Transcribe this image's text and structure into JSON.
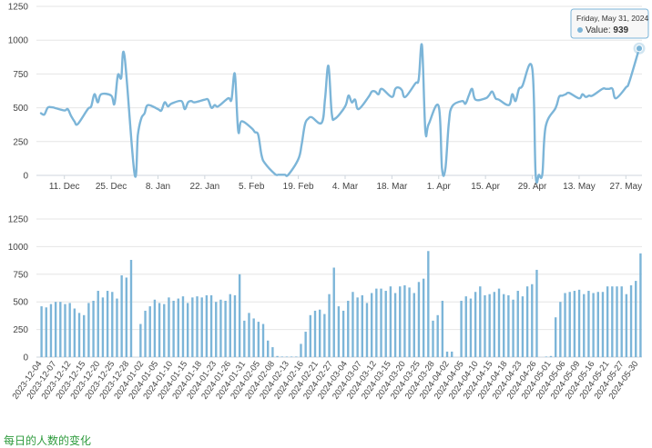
{
  "chart_data": [
    {
      "type": "line",
      "ylim": [
        0,
        1250
      ],
      "y_ticks": [
        "0",
        "250",
        "500",
        "750",
        "1000",
        "1250"
      ],
      "x_ticks": [
        "11. Dec",
        "25. Dec",
        "8. Jan",
        "22. Jan",
        "5. Feb",
        "19. Feb",
        "4. Mar",
        "18. Mar",
        "1. Apr",
        "15. Apr",
        "29. Apr",
        "13. May",
        "27. May"
      ],
      "grid": true,
      "points": [
        [
          "2023-12-04",
          460
        ],
        [
          "2023-12-05",
          450
        ],
        [
          "2023-12-06",
          500
        ],
        [
          "2023-12-07",
          505
        ],
        [
          "2023-12-08",
          500
        ],
        [
          "2023-12-11",
          480
        ],
        [
          "2023-12-12",
          490
        ],
        [
          "2023-12-13",
          440
        ],
        [
          "2023-12-14",
          400
        ],
        [
          "2023-12-15",
          380
        ],
        [
          "2023-12-18",
          490
        ],
        [
          "2023-12-19",
          510
        ],
        [
          "2023-12-20",
          600
        ],
        [
          "2023-12-21",
          540
        ],
        [
          "2023-12-22",
          600
        ],
        [
          "2023-12-25",
          590
        ],
        [
          "2023-12-26",
          530
        ],
        [
          "2023-12-27",
          740
        ],
        [
          "2023-12-28",
          720
        ],
        [
          "2023-12-29",
          880
        ],
        [
          "2024-01-01",
          10
        ],
        [
          "2024-01-02",
          300
        ],
        [
          "2024-01-03",
          420
        ],
        [
          "2024-01-04",
          460
        ],
        [
          "2024-01-05",
          520
        ],
        [
          "2024-01-08",
          490
        ],
        [
          "2024-01-09",
          480
        ],
        [
          "2024-01-10",
          540
        ],
        [
          "2024-01-11",
          510
        ],
        [
          "2024-01-12",
          530
        ],
        [
          "2024-01-15",
          550
        ],
        [
          "2024-01-16",
          490
        ],
        [
          "2024-01-17",
          540
        ],
        [
          "2024-01-18",
          550
        ],
        [
          "2024-01-19",
          540
        ],
        [
          "2024-01-22",
          560
        ],
        [
          "2024-01-23",
          560
        ],
        [
          "2024-01-24",
          500
        ],
        [
          "2024-01-25",
          520
        ],
        [
          "2024-01-26",
          510
        ],
        [
          "2024-01-29",
          570
        ],
        [
          "2024-01-30",
          560
        ],
        [
          "2024-01-31",
          750
        ],
        [
          "2024-02-01",
          330
        ],
        [
          "2024-02-02",
          400
        ],
        [
          "2024-02-05",
          350
        ],
        [
          "2024-02-06",
          320
        ],
        [
          "2024-02-07",
          300
        ],
        [
          "2024-02-08",
          150
        ],
        [
          "2024-02-09",
          90
        ],
        [
          "2024-02-12",
          10
        ],
        [
          "2024-02-13",
          5
        ],
        [
          "2024-02-14",
          5
        ],
        [
          "2024-02-15",
          5
        ],
        [
          "2024-02-16",
          5
        ],
        [
          "2024-02-19",
          120
        ],
        [
          "2024-02-20",
          230
        ],
        [
          "2024-02-21",
          380
        ],
        [
          "2024-02-22",
          420
        ],
        [
          "2024-02-23",
          430
        ],
        [
          "2024-02-26",
          390
        ],
        [
          "2024-02-27",
          570
        ],
        [
          "2024-02-28",
          810
        ],
        [
          "2024-02-29",
          460
        ],
        [
          "2024-03-01",
          420
        ],
        [
          "2024-03-04",
          510
        ],
        [
          "2024-03-05",
          590
        ],
        [
          "2024-03-06",
          540
        ],
        [
          "2024-03-07",
          560
        ],
        [
          "2024-03-08",
          490
        ],
        [
          "2024-03-11",
          580
        ],
        [
          "2024-03-12",
          620
        ],
        [
          "2024-03-13",
          620
        ],
        [
          "2024-03-14",
          600
        ],
        [
          "2024-03-15",
          640
        ],
        [
          "2024-03-18",
          580
        ],
        [
          "2024-03-19",
          640
        ],
        [
          "2024-03-20",
          650
        ],
        [
          "2024-03-21",
          630
        ],
        [
          "2024-03-22",
          580
        ],
        [
          "2024-03-25",
          680
        ],
        [
          "2024-03-26",
          710
        ],
        [
          "2024-03-27",
          960
        ],
        [
          "2024-03-28",
          330
        ],
        [
          "2024-03-29",
          380
        ],
        [
          "2024-04-01",
          510
        ],
        [
          "2024-04-02",
          50
        ],
        [
          "2024-04-03",
          50
        ],
        [
          "2024-04-04",
          380
        ],
        [
          "2024-04-05",
          510
        ],
        [
          "2024-04-08",
          550
        ],
        [
          "2024-04-09",
          530
        ],
        [
          "2024-04-10",
          590
        ],
        [
          "2024-04-11",
          640
        ],
        [
          "2024-04-12",
          560
        ],
        [
          "2024-04-15",
          570
        ],
        [
          "2024-04-16",
          590
        ],
        [
          "2024-04-17",
          620
        ],
        [
          "2024-04-18",
          570
        ],
        [
          "2024-04-19",
          560
        ],
        [
          "2024-04-22",
          520
        ],
        [
          "2024-04-23",
          600
        ],
        [
          "2024-04-24",
          550
        ],
        [
          "2024-04-25",
          640
        ],
        [
          "2024-04-26",
          660
        ],
        [
          "2024-04-29",
          790
        ],
        [
          "2024-04-30",
          10
        ],
        [
          "2024-05-01",
          5
        ],
        [
          "2024-05-02",
          10
        ],
        [
          "2024-05-03",
          360
        ],
        [
          "2024-05-06",
          500
        ],
        [
          "2024-05-07",
          580
        ],
        [
          "2024-05-08",
          590
        ],
        [
          "2024-05-09",
          600
        ],
        [
          "2024-05-10",
          610
        ],
        [
          "2024-05-13",
          570
        ],
        [
          "2024-05-14",
          600
        ],
        [
          "2024-05-15",
          580
        ],
        [
          "2024-05-16",
          590
        ],
        [
          "2024-05-17",
          590
        ],
        [
          "2024-05-20",
          640
        ],
        [
          "2024-05-21",
          640
        ],
        [
          "2024-05-22",
          640
        ],
        [
          "2024-05-23",
          640
        ],
        [
          "2024-05-24",
          570
        ],
        [
          "2024-05-27",
          650
        ],
        [
          "2024-05-28",
          690
        ],
        [
          "2024-05-31",
          939
        ]
      ]
    },
    {
      "type": "bar",
      "ylim": [
        0,
        1250
      ],
      "y_ticks": [
        "0",
        "250",
        "500",
        "750",
        "1000",
        "1250"
      ],
      "x_ticks": [
        "2023-12-04",
        "2023-12-07",
        "2023-12-12",
        "2023-12-15",
        "2023-12-20",
        "2023-12-25",
        "2023-12-28",
        "2024-01-02",
        "2024-01-05",
        "2024-01-10",
        "2024-01-15",
        "2024-01-18",
        "2024-01-23",
        "2024-01-26",
        "2024-01-31",
        "2024-02-05",
        "2024-02-08",
        "2024-02-13",
        "2024-02-16",
        "2024-02-21",
        "2024-02-27",
        "2024-03-04",
        "2024-03-07",
        "2024-03-12",
        "2024-03-15",
        "2024-03-20",
        "2024-03-25",
        "2024-03-28",
        "2024-04-02",
        "2024-04-05",
        "2024-04-10",
        "2024-04-15",
        "2024-04-18",
        "2024-04-23",
        "2024-04-26",
        "2024-05-01",
        "2024-05-06",
        "2024-05-09",
        "2024-05-16",
        "2024-05-21",
        "2024-05-27",
        "2024-05-30"
      ],
      "grid": true,
      "values": [
        460,
        450,
        480,
        500,
        500,
        480,
        490,
        440,
        400,
        380,
        490,
        510,
        600,
        540,
        600,
        590,
        530,
        740,
        720,
        880,
        0,
        300,
        420,
        460,
        520,
        490,
        480,
        540,
        510,
        530,
        550,
        490,
        540,
        550,
        540,
        560,
        560,
        500,
        520,
        510,
        570,
        560,
        750,
        330,
        400,
        350,
        320,
        300,
        150,
        90,
        10,
        5,
        5,
        5,
        5,
        120,
        230,
        380,
        420,
        430,
        390,
        570,
        810,
        460,
        420,
        510,
        590,
        540,
        560,
        490,
        580,
        620,
        620,
        600,
        640,
        580,
        640,
        650,
        630,
        580,
        680,
        710,
        960,
        330,
        380,
        510,
        50,
        50,
        0,
        510,
        550,
        530,
        590,
        640,
        560,
        570,
        590,
        620,
        570,
        560,
        520,
        600,
        550,
        640,
        660,
        790,
        0,
        5,
        10,
        360,
        500,
        580,
        590,
        600,
        610,
        570,
        600,
        580,
        590,
        590,
        640,
        640,
        640,
        640,
        570,
        650,
        690,
        939
      ]
    }
  ],
  "tooltip": {
    "date": "Friday, May 31, 2024",
    "label": "Value:",
    "value": "939"
  },
  "footer_text": "每日的人数的变化"
}
